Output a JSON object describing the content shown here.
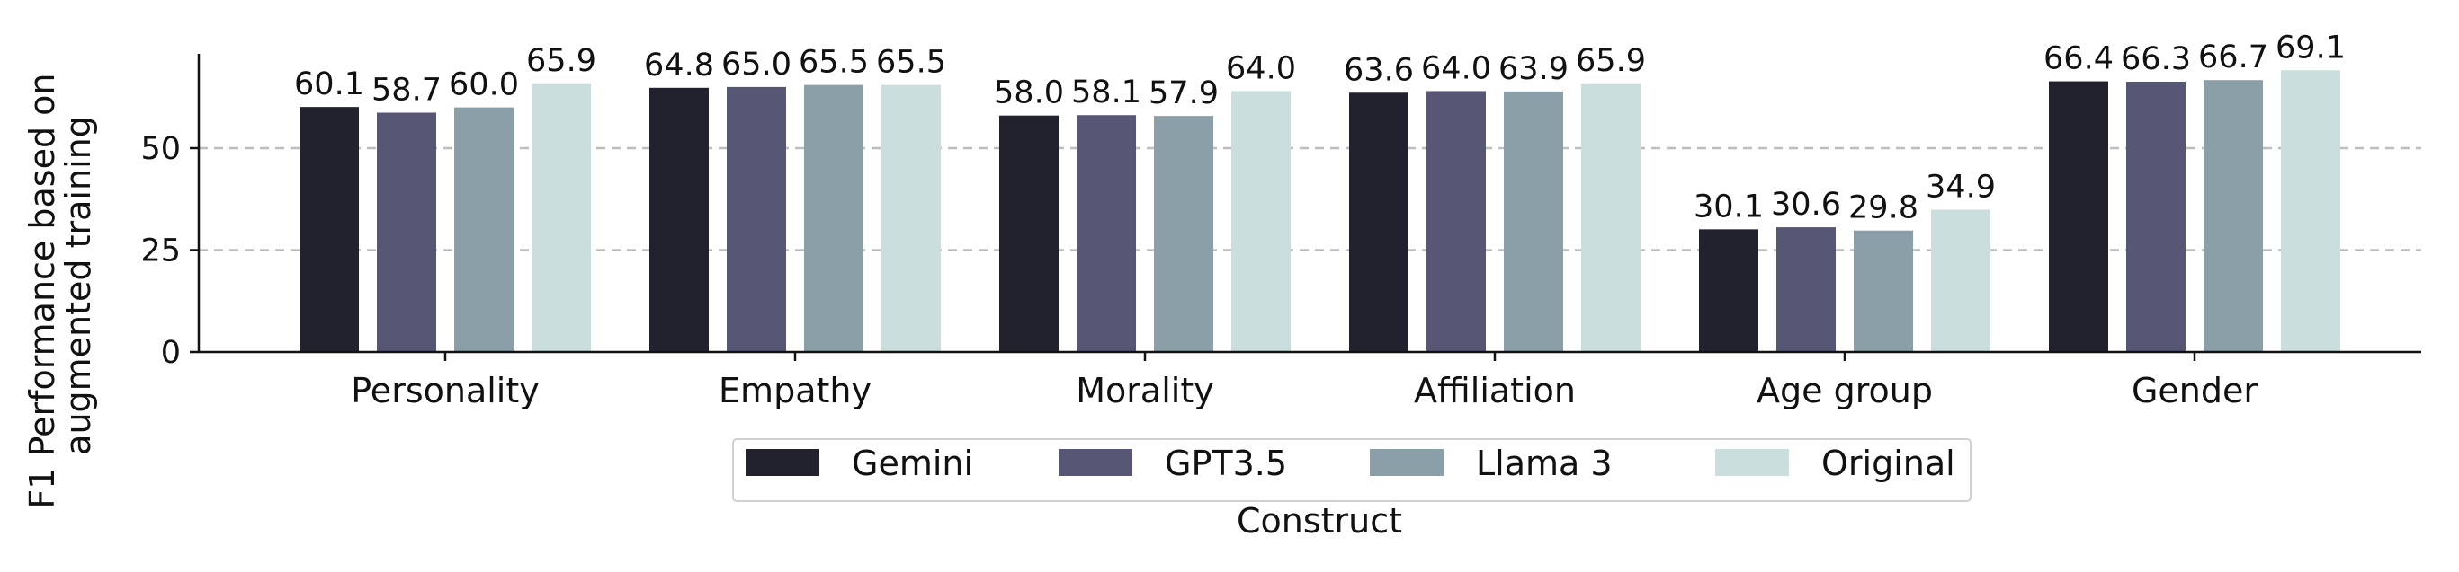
{
  "chart_data": {
    "type": "bar",
    "categories": [
      "Personality",
      "Empathy",
      "Morality",
      "Affiliation",
      "Age group",
      "Gender"
    ],
    "series": [
      {
        "name": "Gemini",
        "color": "#22222f",
        "values": [
          60.1,
          64.8,
          58.0,
          63.6,
          30.1,
          66.4
        ]
      },
      {
        "name": "GPT3.5",
        "color": "#575775",
        "values": [
          58.7,
          65.0,
          58.1,
          64.0,
          30.6,
          66.3
        ]
      },
      {
        "name": "Llama 3",
        "color": "#8b9fa8",
        "values": [
          60.0,
          65.5,
          57.9,
          63.9,
          29.8,
          66.7
        ]
      },
      {
        "name": "Original",
        "color": "#cadedd",
        "values": [
          65.9,
          65.5,
          64.0,
          65.9,
          34.9,
          69.1
        ]
      }
    ],
    "value_labels": [
      [
        "60.1",
        "64.8",
        "58.0",
        "63.6",
        "30.1",
        "66.4"
      ],
      [
        "58.7",
        "65.0",
        "58.1",
        "64.0",
        "30.6",
        "66.3"
      ],
      [
        "60.0",
        "65.5",
        "57.9",
        "63.9",
        "29.8",
        "66.7"
      ],
      [
        "65.9",
        "65.5",
        "64.0",
        "65.9",
        "34.9",
        "69.1"
      ]
    ],
    "xlabel": "Construct",
    "ylabel_lines": [
      "F1 Performance based on",
      "augmented training"
    ],
    "ylim": [
      0,
      73
    ],
    "yticks": [
      0,
      25,
      50
    ],
    "ytick_labels": [
      "0",
      "25",
      "50"
    ],
    "grid": "horizontal dashed at 25 and 50",
    "legend_position": "bottom-center"
  }
}
